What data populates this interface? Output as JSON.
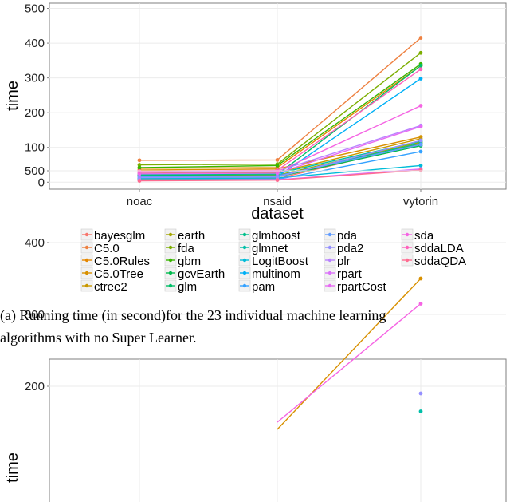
{
  "caption_line1": "(a) Running time (in second)for the 23 individual machine learning",
  "caption_line2": "algorithms with no Super Learner.",
  "chart_data": [
    {
      "type": "line",
      "xlabel": "dataset",
      "ylabel": "time",
      "categories": [
        "noac",
        "nsaid",
        "vytorin"
      ],
      "ylim": [
        -20,
        515
      ],
      "yticks": [
        0,
        100,
        200,
        300,
        400,
        500
      ],
      "grid": true,
      "legend_position": "bottom",
      "series": [
        {
          "name": "bayesglm",
          "color": "#F8766D",
          "values": [
            8,
            10,
            110
          ]
        },
        {
          "name": "C5.0",
          "color": "#EE8141",
          "values": [
            63,
            64,
            415
          ]
        },
        {
          "name": "C5.0Rules",
          "color": "#E58700",
          "values": [
            40,
            42,
            335
          ]
        },
        {
          "name": "C5.0Tree",
          "color": "#D89000",
          "values": [
            35,
            38,
            130
          ]
        },
        {
          "name": "ctree2",
          "color": "#C99800",
          "values": [
            25,
            28,
            125
          ]
        },
        {
          "name": "earth",
          "color": "#A3A500",
          "values": [
            18,
            20,
            115
          ]
        },
        {
          "name": "fda",
          "color": "#7CAE00",
          "values": [
            50,
            52,
            372
          ]
        },
        {
          "name": "gbm",
          "color": "#39B600",
          "values": [
            42,
            48,
            340
          ]
        },
        {
          "name": "gcvEarth",
          "color": "#00BB4E",
          "values": [
            12,
            15,
            105
          ]
        },
        {
          "name": "glm",
          "color": "#00BE67",
          "values": [
            20,
            22,
            335
          ]
        },
        {
          "name": "glmboost",
          "color": "#00C08B",
          "values": [
            15,
            18,
            112
          ]
        },
        {
          "name": "glmnet",
          "color": "#00BFA8",
          "values": [
            22,
            25,
            118
          ]
        },
        {
          "name": "LogitBoost",
          "color": "#00BCD8",
          "values": [
            10,
            12,
            48
          ]
        },
        {
          "name": "multinom",
          "color": "#00B0F6",
          "values": [
            14,
            16,
            298
          ]
        },
        {
          "name": "pam",
          "color": "#35A2FF",
          "values": [
            6,
            8,
            88
          ]
        },
        {
          "name": "pda",
          "color": "#619CFF",
          "values": [
            16,
            18,
            108
          ]
        },
        {
          "name": "pda2",
          "color": "#9590FF",
          "values": [
            13,
            15,
            120
          ]
        },
        {
          "name": "plr",
          "color": "#B983FF",
          "values": [
            30,
            32,
            163
          ]
        },
        {
          "name": "rpart",
          "color": "#DB72FB",
          "values": [
            5,
            7,
            38
          ]
        },
        {
          "name": "rpartCost",
          "color": "#E76BF3",
          "values": [
            24,
            26,
            160
          ]
        },
        {
          "name": "sda",
          "color": "#F564E3",
          "values": [
            28,
            30,
            220
          ]
        },
        {
          "name": "sddaLDA",
          "color": "#FF62BC",
          "values": [
            32,
            34,
            325
          ]
        },
        {
          "name": "sddaQDA",
          "color": "#FF6C91",
          "values": [
            4,
            6,
            35
          ]
        }
      ]
    },
    {
      "type": "line",
      "ylabel": "time",
      "ylim": [
        0,
        515
      ],
      "yticks": [
        200,
        300,
        400,
        500
      ],
      "grid": true,
      "series": [
        {
          "color": "#D89000",
          "values": [
            null,
            140,
            350
          ]
        },
        {
          "color": "#F564E3",
          "values": [
            null,
            150,
            315
          ]
        },
        {
          "color": "#9590FF",
          "values": [
            null,
            null,
            190
          ]
        },
        {
          "color": "#00BFA8",
          "values": [
            null,
            null,
            165
          ]
        }
      ]
    }
  ]
}
